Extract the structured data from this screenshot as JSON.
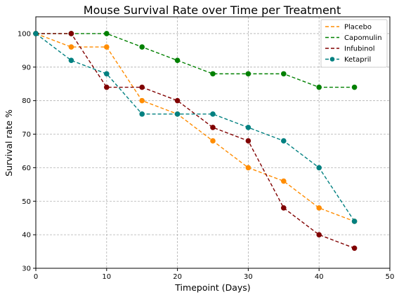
{
  "chart_data": {
    "type": "line",
    "title": "Mouse Survival Rate over Time per Treatment",
    "xlabel": "Timepoint (Days)",
    "ylabel": "Survival rate %",
    "xlim": [
      0,
      50
    ],
    "ylim": [
      30,
      105
    ],
    "xticks": [
      0,
      10,
      20,
      30,
      40,
      50
    ],
    "yticks": [
      30,
      40,
      50,
      60,
      70,
      80,
      90,
      100
    ],
    "grid": true,
    "legend_position": "top-right",
    "x": [
      0,
      5,
      10,
      15,
      20,
      25,
      30,
      35,
      40,
      45
    ],
    "series": [
      {
        "name": "Placebo",
        "color": "#ff8c00",
        "values": [
          100,
          96,
          96,
          80,
          76,
          68,
          60,
          56,
          48,
          44
        ]
      },
      {
        "name": "Capomulin",
        "color": "#008000",
        "values": [
          100,
          100,
          100,
          96,
          92,
          88,
          88,
          88,
          84,
          84
        ]
      },
      {
        "name": "Infubinol",
        "color": "#800000",
        "values": [
          100,
          100,
          84,
          84,
          80,
          72,
          68,
          48,
          40,
          36
        ]
      },
      {
        "name": "Ketapril",
        "color": "#008080",
        "values": [
          100,
          92,
          88,
          76,
          76,
          76,
          72,
          68,
          60,
          44
        ]
      }
    ]
  }
}
